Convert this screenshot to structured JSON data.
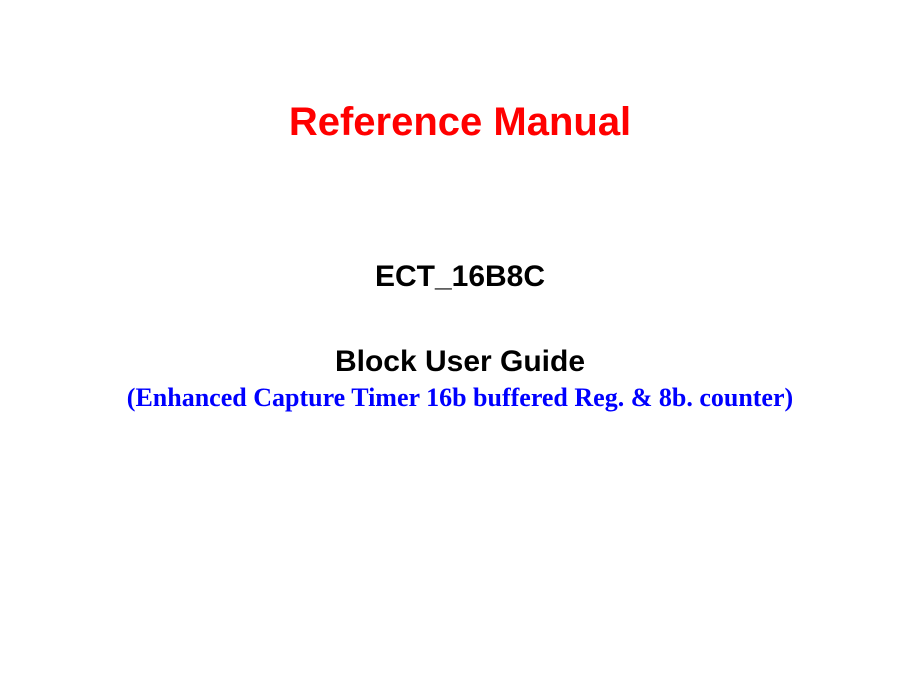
{
  "title": {
    "text": "Reference Manual",
    "color": "#ff0000",
    "fontsize": 40
  },
  "line1": {
    "text": "ECT_16B8C",
    "color": "#000000",
    "fontsize": 30
  },
  "line2": {
    "text": "Block User Guide",
    "color": "#000000",
    "fontsize": 30
  },
  "line3": {
    "text": "(Enhanced Capture Timer 16b buffered Reg. & 8b. counter)",
    "color": "#0000ff",
    "fontsize": 26
  },
  "background_color": "#ffffff"
}
